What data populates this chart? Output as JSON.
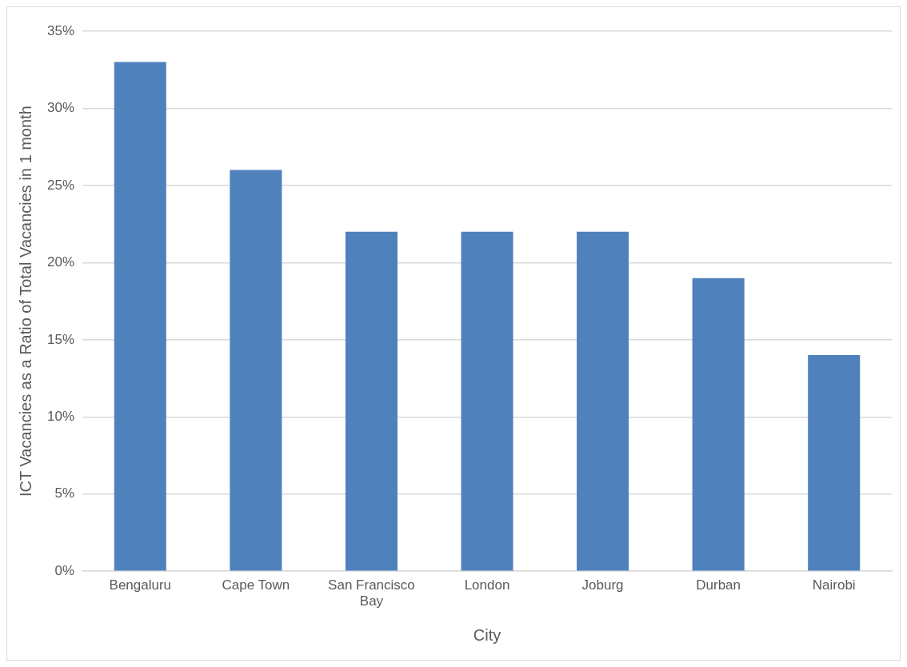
{
  "chart_data": {
    "type": "bar",
    "xlabel": "City",
    "ylabel": "ICT Vacancies as a Ratio of Total Vacancies in 1 month",
    "categories": [
      "Bengaluru",
      "Cape Town",
      "San Francisco Bay",
      "London",
      "Joburg",
      "Durban",
      "Nairobi"
    ],
    "values": [
      33,
      26,
      22,
      22,
      22,
      19,
      14
    ],
    "color": "#4f81bd",
    "ylim": [
      0,
      35
    ],
    "yticks": [
      {
        "value": 0,
        "label": "0%"
      },
      {
        "value": 5,
        "label": "5%"
      },
      {
        "value": 10,
        "label": "10%"
      },
      {
        "value": 15,
        "label": "15%"
      },
      {
        "value": 20,
        "label": "20%"
      },
      {
        "value": 25,
        "label": "25%"
      },
      {
        "value": 30,
        "label": "30%"
      },
      {
        "value": 35,
        "label": "35%"
      }
    ],
    "grid": "y",
    "legend": false
  }
}
